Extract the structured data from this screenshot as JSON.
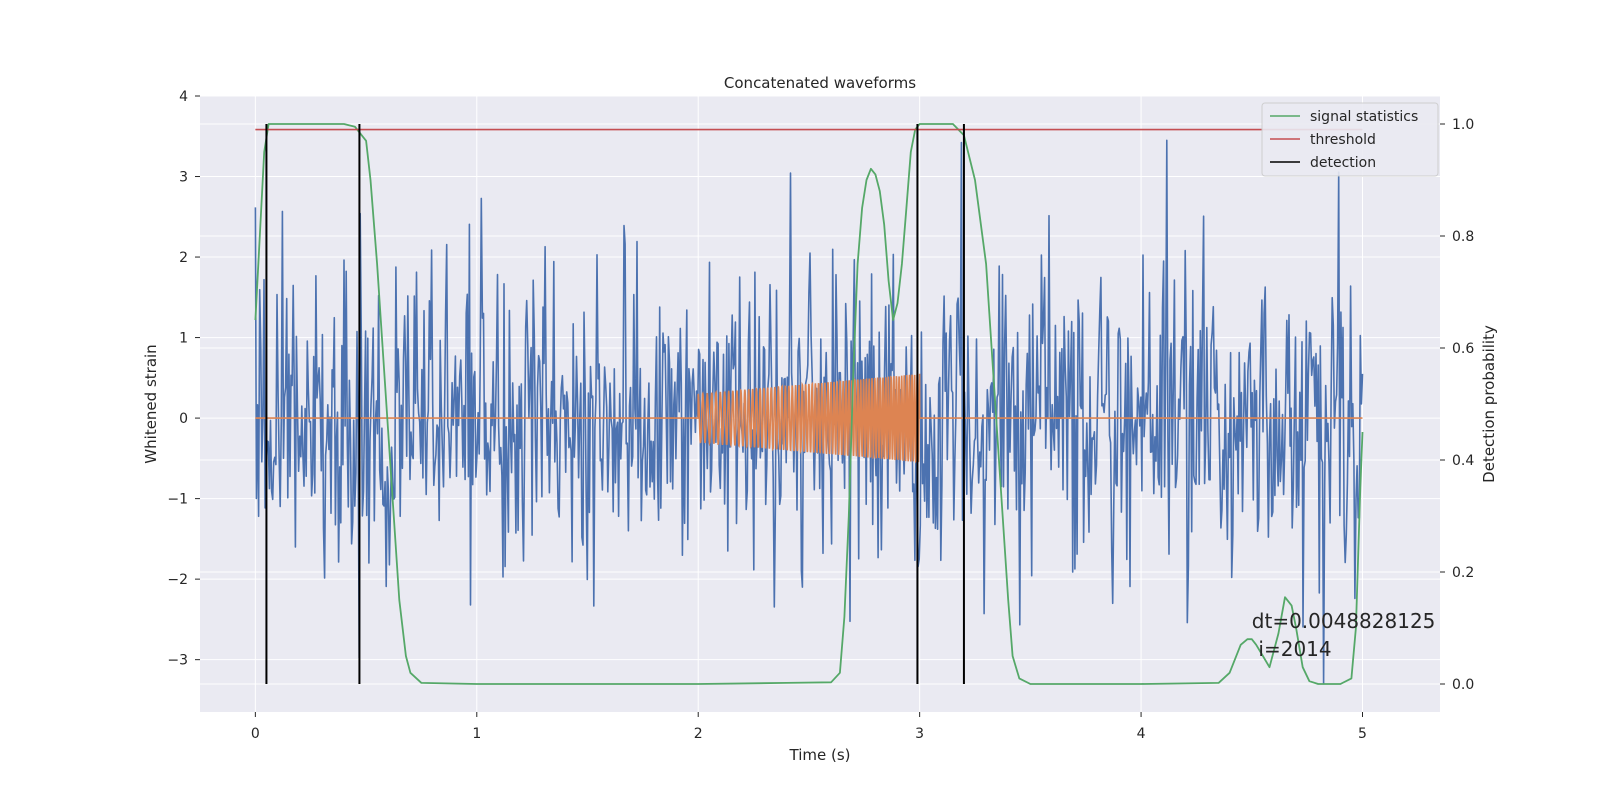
{
  "chart_data": {
    "type": "line",
    "title": "Concatenated waveforms",
    "xlabel": "Time (s)",
    "ylabel": "Whitened strain",
    "ylabel_right": "Detection probability",
    "xlim": [
      -0.25,
      5.35
    ],
    "ylim": [
      -3.65,
      4.0
    ],
    "ylim_right": [
      -0.05,
      1.05
    ],
    "xticks": [
      0,
      1,
      2,
      3,
      4,
      5
    ],
    "xtick_labels": [
      "0",
      "1",
      "2",
      "3",
      "4",
      "5"
    ],
    "yticks": [
      -3,
      -2,
      -1,
      0,
      1,
      2,
      3,
      4
    ],
    "ytick_labels": [
      "−3",
      "−2",
      "−1",
      "0",
      "1",
      "2",
      "3",
      "4"
    ],
    "yticks_right": [
      0.0,
      0.2,
      0.4,
      0.6,
      0.8,
      1.0
    ],
    "ytick_labels_right": [
      "0.0",
      "0.2",
      "0.4",
      "0.6",
      "0.8",
      "1.0"
    ],
    "grid": true,
    "legend_position": "top-right",
    "legend": [
      {
        "label": "signal statistics",
        "color": "#55a868"
      },
      {
        "label": "threshold",
        "color": "#c44e52"
      },
      {
        "label": "detection",
        "color": "#000000"
      }
    ],
    "colors": {
      "strain": "#4c72b0",
      "injection": "#dd8452",
      "signal_statistics": "#55a868",
      "threshold": "#c44e52",
      "detection": "#000000",
      "axes_bg": "#eaeaf2",
      "grid": "#ffffff"
    },
    "series": [
      {
        "name": "signal statistics",
        "axis": "right",
        "x": [
          0.0,
          0.02,
          0.04,
          0.06,
          0.08,
          0.1,
          0.2,
          0.3,
          0.4,
          0.45,
          0.5,
          0.52,
          0.55,
          0.6,
          0.65,
          0.68,
          0.7,
          0.75,
          1.0,
          2.0,
          2.4,
          2.6,
          2.64,
          2.66,
          2.68,
          2.7,
          2.72,
          2.74,
          2.76,
          2.78,
          2.8,
          2.82,
          2.84,
          2.86,
          2.88,
          2.9,
          2.92,
          2.94,
          2.96,
          2.98,
          3.0,
          3.05,
          3.1,
          3.15,
          3.2,
          3.25,
          3.3,
          3.35,
          3.4,
          3.42,
          3.45,
          3.5,
          4.0,
          4.35,
          4.4,
          4.45,
          4.48,
          4.5,
          4.52,
          4.55,
          4.58,
          4.62,
          4.65,
          4.68,
          4.7,
          4.73,
          4.76,
          4.8,
          4.9,
          4.95,
          4.97,
          4.99,
          5.0
        ],
        "y": [
          0.65,
          0.8,
          0.95,
          1.0,
          1.0,
          1.0,
          1.0,
          1.0,
          1.0,
          0.995,
          0.97,
          0.9,
          0.75,
          0.45,
          0.15,
          0.05,
          0.02,
          0.002,
          0.0,
          0.0,
          0.002,
          0.003,
          0.02,
          0.12,
          0.3,
          0.55,
          0.75,
          0.85,
          0.9,
          0.92,
          0.91,
          0.88,
          0.82,
          0.72,
          0.65,
          0.68,
          0.75,
          0.85,
          0.95,
          0.99,
          1.0,
          1.0,
          1.0,
          1.0,
          0.98,
          0.9,
          0.75,
          0.45,
          0.15,
          0.05,
          0.01,
          0.0,
          0.0,
          0.002,
          0.02,
          0.07,
          0.08,
          0.08,
          0.07,
          0.05,
          0.03,
          0.09,
          0.155,
          0.14,
          0.1,
          0.03,
          0.005,
          0.0,
          0.0,
          0.01,
          0.1,
          0.35,
          0.45
        ]
      },
      {
        "name": "threshold",
        "axis": "right",
        "x": [
          0.0,
          5.0
        ],
        "y": [
          0.99,
          0.99
        ]
      }
    ],
    "detections_x": [
      0.05,
      0.47,
      2.99,
      3.2
    ],
    "noise": {
      "x_range": [
        0.0,
        5.0
      ],
      "dt": 0.0048828125,
      "envelope": [
        -2.4,
        2.4
      ],
      "peak_min": -3.3,
      "peak_max": 3.45
    },
    "injection": {
      "x_range": [
        2.0,
        3.0
      ],
      "amplitude_start": 0.3,
      "amplitude_end": 0.55
    },
    "annotations": [
      {
        "text": "dt=0.0048828125",
        "x": 4.5,
        "y": 0.1
      },
      {
        "text": "i=2014",
        "x": 4.53,
        "y": 0.05
      }
    ]
  }
}
